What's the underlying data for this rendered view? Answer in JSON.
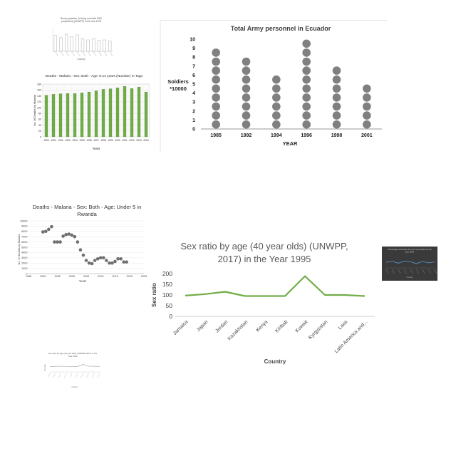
{
  "colors": {
    "green": "#70ad47",
    "green_dark": "#548235",
    "gray_dot": "#808080",
    "rwanda_dot": "#6f6f6f",
    "dark_bg": "#3a3a3a",
    "dark_line": "#5b9bd5"
  },
  "chart_data": [
    {
      "id": "thumb-top-left",
      "type": "bar",
      "title": "Rural population (% living rural with 2000 proportions) (UNWPP) in the Year 1975",
      "xlabel": "Country",
      "ylabel": "",
      "ylim": [
        0,
        100
      ],
      "values": [
        70,
        60,
        75,
        65,
        72,
        55,
        50,
        55,
        48,
        50,
        45
      ]
    },
    {
      "id": "togo-bar",
      "type": "bar",
      "title": "Deaths - Malaria - Sex: Both - Age: 5-14 years (Number) in Togo",
      "xlabel": "Years",
      "ylabel": "No. of Deaths by Malaria",
      "ylim": [
        0,
        180
      ],
      "yticks": [
        0,
        20,
        40,
        60,
        80,
        100,
        120,
        140,
        160,
        180
      ],
      "categories": [
        "1990",
        "1991",
        "1992",
        "1993",
        "1994",
        "1995",
        "1996",
        "1997",
        "1998",
        "1999",
        "2000",
        "2001",
        "2002",
        "2003",
        "2004"
      ],
      "values": [
        142,
        145,
        147,
        148,
        148,
        150,
        153,
        157,
        162,
        164,
        167,
        172,
        165,
        170,
        153
      ]
    },
    {
      "id": "ecuador-dots",
      "type": "bar",
      "title": "Total Army personnel in Ecuador",
      "xlabel": "YEAR",
      "ylabel": "Soldiers *10000",
      "ylim": [
        0,
        10
      ],
      "yticks": [
        0,
        1,
        2,
        3,
        4,
        5,
        6,
        7,
        8,
        9,
        10
      ],
      "categories": [
        "1985",
        "1992",
        "1994",
        "1996",
        "1998",
        "2001"
      ],
      "values": [
        9,
        8,
        6,
        10,
        7,
        5
      ]
    },
    {
      "id": "rwanda-scatter",
      "type": "scatter",
      "title": "Deaths - Malaria - Sex: Both - Age: Under 5 in Rwanda",
      "xlabel": "Years",
      "ylabel": "No. Of Deaths by Malaria",
      "xlim": [
        1985,
        2025
      ],
      "ylim": [
        0,
        10000
      ],
      "xticks": [
        1985,
        1990,
        1995,
        2000,
        2005,
        2010,
        2015,
        2020,
        2025
      ],
      "yticks": [
        0,
        1000,
        2000,
        3000,
        4000,
        5000,
        6000,
        7000,
        8000,
        9000,
        10000
      ],
      "points": [
        {
          "x": 1990,
          "y": 7900
        },
        {
          "x": 1991,
          "y": 8000
        },
        {
          "x": 1992,
          "y": 8400
        },
        {
          "x": 1993,
          "y": 8900
        },
        {
          "x": 1994,
          "y": 6000
        },
        {
          "x": 1995,
          "y": 6000
        },
        {
          "x": 1996,
          "y": 6000
        },
        {
          "x": 1997,
          "y": 7100
        },
        {
          "x": 1998,
          "y": 7400
        },
        {
          "x": 1999,
          "y": 7500
        },
        {
          "x": 2000,
          "y": 7300
        },
        {
          "x": 2001,
          "y": 7000
        },
        {
          "x": 2002,
          "y": 6000
        },
        {
          "x": 2003,
          "y": 4500
        },
        {
          "x": 2004,
          "y": 3500
        },
        {
          "x": 2005,
          "y": 2500
        },
        {
          "x": 2006,
          "y": 2000
        },
        {
          "x": 2007,
          "y": 1900
        },
        {
          "x": 2008,
          "y": 2500
        },
        {
          "x": 2009,
          "y": 2800
        },
        {
          "x": 2010,
          "y": 3000
        },
        {
          "x": 2011,
          "y": 3000
        },
        {
          "x": 2012,
          "y": 2500
        },
        {
          "x": 2013,
          "y": 2000
        },
        {
          "x": 2014,
          "y": 2000
        },
        {
          "x": 2015,
          "y": 2300
        },
        {
          "x": 2016,
          "y": 2800
        },
        {
          "x": 2017,
          "y": 2800
        },
        {
          "x": 2018,
          "y": 2200
        },
        {
          "x": 2019,
          "y": 2200
        }
      ]
    },
    {
      "id": "sex-ratio-line",
      "type": "line",
      "title": "Sex ratio by age (40 year olds) (UNWPP, 2017) in the Year 1995",
      "xlabel": "Country",
      "ylabel": "Sex ratio",
      "ylim": [
        0,
        200
      ],
      "yticks": [
        0,
        50,
        100,
        150,
        200
      ],
      "categories": [
        "Jamaica",
        "Japan",
        "Jordan",
        "Kazakhstan",
        "Kenya",
        "Kiribati",
        "Kuwait",
        "Kyrgyzstan",
        "Laos",
        "Latin America and..."
      ],
      "values": [
        97,
        104,
        115,
        95,
        95,
        95,
        188,
        100,
        100,
        95
      ]
    },
    {
      "id": "thumb-dark",
      "type": "line",
      "title": "Percentage of People who are not smokers by the year 2004",
      "xlabel": "Country",
      "values": [
        55,
        60,
        50,
        62,
        58,
        48,
        60,
        52,
        57
      ]
    },
    {
      "id": "thumb-bottom-left",
      "type": "line",
      "title": "Sex ratio by age (40 year olds) (UNWPP, 2017) in the Year 2004",
      "xlabel": "Country",
      "ylabel": "Sex ratio",
      "values": [
        95,
        98,
        100,
        97,
        96,
        96,
        130,
        100,
        99,
        96
      ]
    }
  ]
}
